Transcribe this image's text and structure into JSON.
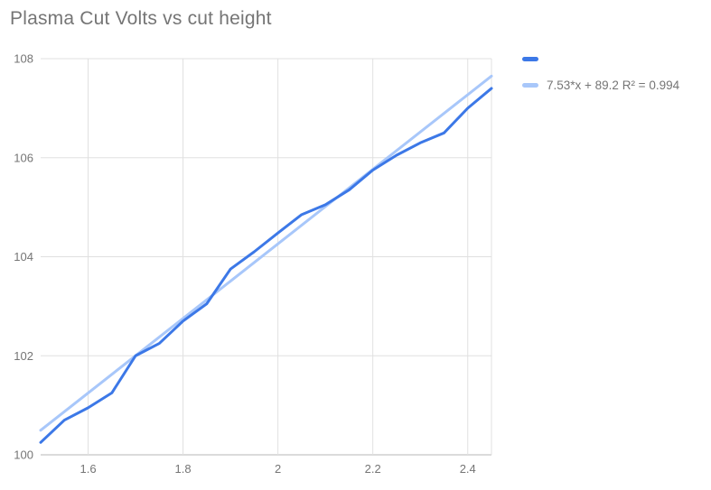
{
  "title": "Plasma Cut Volts vs cut height",
  "colors": {
    "series_line": "#3c78e7",
    "trendline": "#a8c7fa",
    "title_text": "#757575",
    "axis_text": "#757575",
    "gridline": "#e0e0e0",
    "axis_line": "#b7b7b7",
    "background": "#ffffff"
  },
  "legend": {
    "items": [
      {
        "swatch_color": "#3c78e7",
        "label": ""
      },
      {
        "swatch_color": "#a8c7fa",
        "label": "7.53*x + 89.2 R² = 0.994"
      }
    ]
  },
  "chart_data": {
    "type": "line",
    "title": "Plasma Cut Volts vs cut height",
    "xlabel": "",
    "ylabel": "",
    "xlim": [
      1.5,
      2.45
    ],
    "ylim": [
      100,
      108
    ],
    "x_ticks": [
      1.6,
      1.8,
      2,
      2.2,
      2.4
    ],
    "x_tick_labels": [
      "1.6",
      "1.8",
      "2",
      "2.2",
      "2.4"
    ],
    "y_ticks": [
      100,
      102,
      104,
      106,
      108
    ],
    "y_tick_labels": [
      "100",
      "102",
      "104",
      "106",
      "108"
    ],
    "grid": true,
    "legend_position": "top-right",
    "series": [
      {
        "label": "",
        "x": [
          1.5,
          1.55,
          1.6,
          1.65,
          1.7,
          1.75,
          1.8,
          1.85,
          1.9,
          1.95,
          2.0,
          2.05,
          2.1,
          2.15,
          2.2,
          2.25,
          2.3,
          2.35,
          2.4,
          2.45
        ],
        "y": [
          100.25,
          100.7,
          100.95,
          101.25,
          102.0,
          102.25,
          102.7,
          103.05,
          103.75,
          104.1,
          104.48,
          104.85,
          105.05,
          105.35,
          105.75,
          106.05,
          106.3,
          106.5,
          107.0,
          107.4
        ]
      }
    ],
    "trendline": {
      "type": "linear",
      "slope": 7.53,
      "intercept": 89.2,
      "r_squared": 0.994,
      "label": "7.53*x + 89.2 R² = 0.994"
    }
  }
}
